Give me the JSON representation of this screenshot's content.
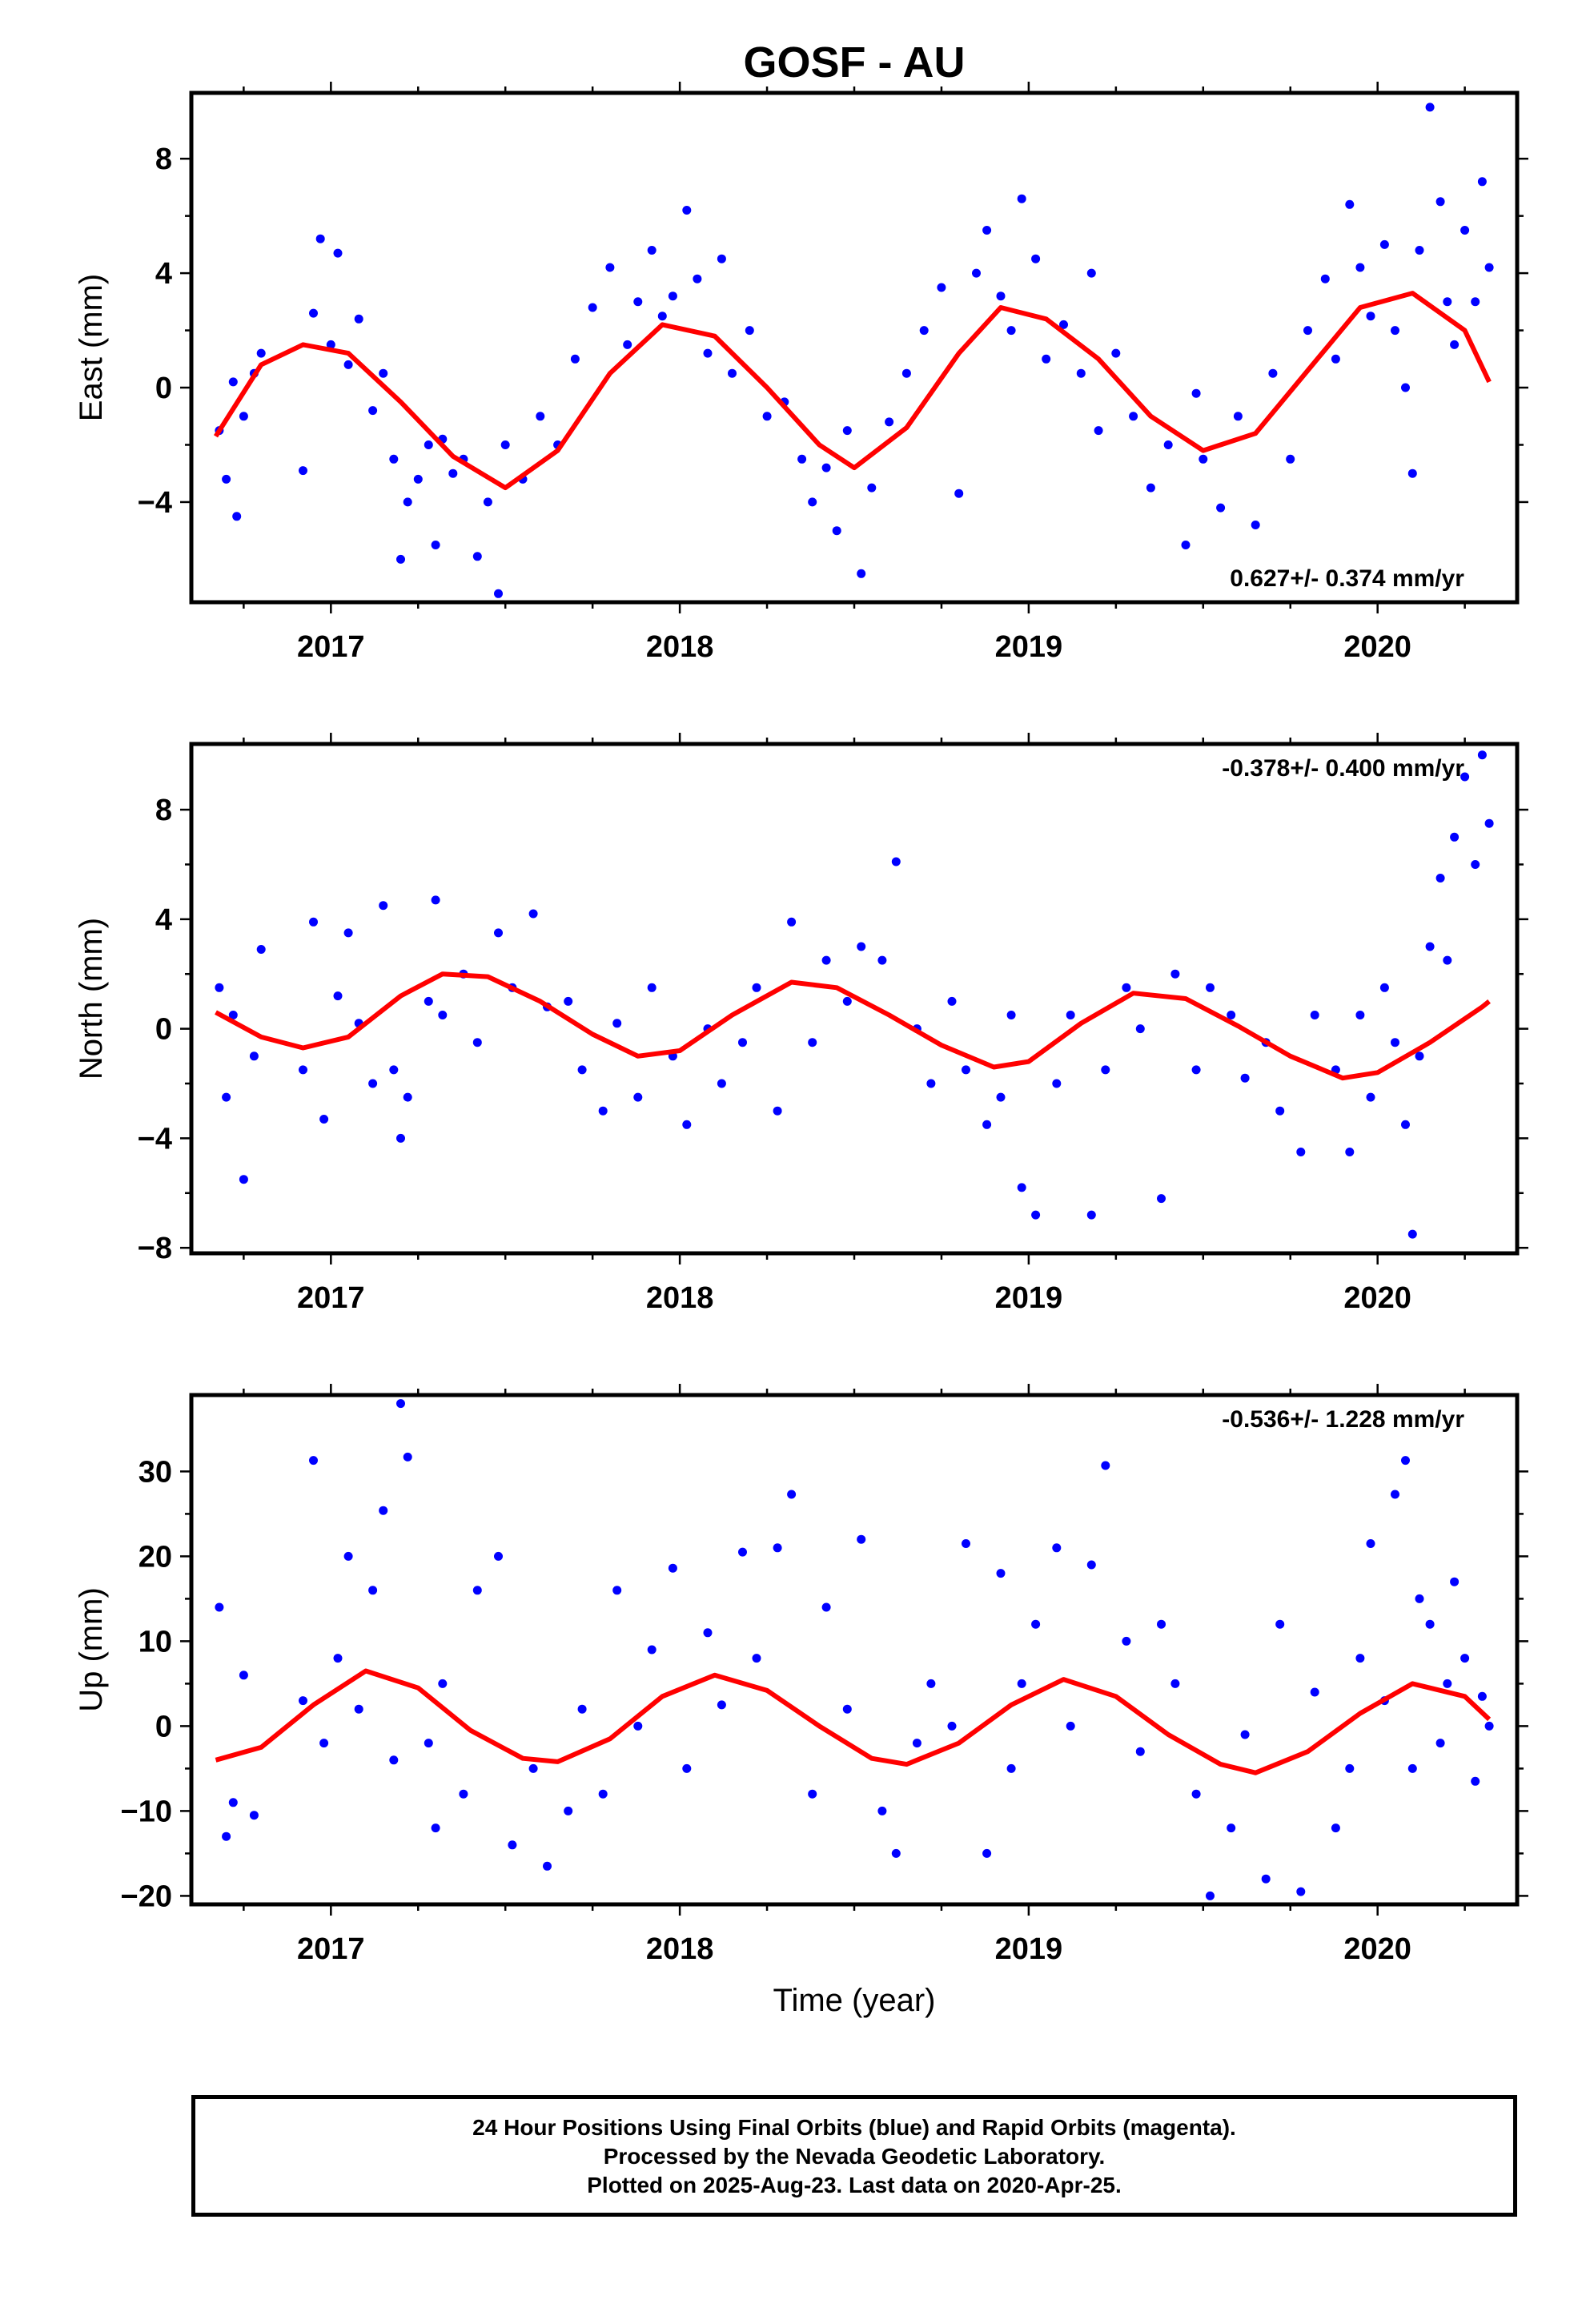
{
  "title": "GOSF - AU",
  "colors": {
    "points": "#0000ff",
    "fit": "#ff0000",
    "frame": "#000000"
  },
  "chart_data": [
    {
      "type": "scatter",
      "ylabel": "East (mm)",
      "xlabel": "",
      "xlim": [
        2016.6,
        2020.4
      ],
      "ylim": [
        -7.5,
        10.3
      ],
      "xticks": [
        2017,
        2018,
        2019,
        2020
      ],
      "yticks": [
        -4,
        0,
        4,
        8
      ],
      "annotation": "0.627+/- 0.374 mm/yr",
      "annotation_placement": "bottom-right",
      "fit": {
        "x": [
          2016.67,
          2016.8,
          2016.92,
          2017.05,
          2017.2,
          2017.35,
          2017.5,
          2017.65,
          2017.8,
          2017.95,
          2018.1,
          2018.25,
          2018.4,
          2018.5,
          2018.65,
          2018.8,
          2018.92,
          2019.05,
          2019.2,
          2019.35,
          2019.5,
          2019.65,
          2019.8,
          2019.95,
          2020.1,
          2020.25,
          2020.32
        ],
        "y": [
          -1.7,
          0.8,
          1.5,
          1.2,
          -0.5,
          -2.4,
          -3.5,
          -2.2,
          0.5,
          2.2,
          1.8,
          0.0,
          -2.0,
          -2.8,
          -1.4,
          1.2,
          2.8,
          2.4,
          1.0,
          -1.0,
          -2.2,
          -1.6,
          0.6,
          2.8,
          3.3,
          2.0,
          0.2
        ]
      },
      "points": {
        "x": [
          2016.68,
          2016.7,
          2016.72,
          2016.73,
          2016.75,
          2016.78,
          2016.8,
          2016.92,
          2016.95,
          2016.97,
          2017.0,
          2017.02,
          2017.05,
          2017.08,
          2017.12,
          2017.15,
          2017.18,
          2017.2,
          2017.22,
          2017.25,
          2017.28,
          2017.3,
          2017.32,
          2017.35,
          2017.38,
          2017.42,
          2017.45,
          2017.48,
          2017.5,
          2017.55,
          2017.6,
          2017.65,
          2017.7,
          2017.75,
          2017.8,
          2017.85,
          2017.88,
          2017.92,
          2017.95,
          2017.98,
          2018.02,
          2018.05,
          2018.08,
          2018.12,
          2018.15,
          2018.2,
          2018.25,
          2018.3,
          2018.35,
          2018.38,
          2018.42,
          2018.45,
          2018.48,
          2018.52,
          2018.55,
          2018.6,
          2018.65,
          2018.7,
          2018.75,
          2018.8,
          2018.85,
          2018.88,
          2018.92,
          2018.95,
          2018.98,
          2019.02,
          2019.05,
          2019.1,
          2019.15,
          2019.18,
          2019.2,
          2019.25,
          2019.3,
          2019.35,
          2019.4,
          2019.45,
          2019.48,
          2019.5,
          2019.55,
          2019.6,
          2019.65,
          2019.7,
          2019.75,
          2019.8,
          2019.85,
          2019.88,
          2019.92,
          2019.95,
          2019.98,
          2020.02,
          2020.05,
          2020.08,
          2020.1,
          2020.12,
          2020.15,
          2020.18,
          2020.2,
          2020.22,
          2020.25,
          2020.28,
          2020.3,
          2020.32
        ],
        "y": [
          -1.5,
          -3.2,
          0.2,
          -4.5,
          -1.0,
          0.5,
          1.2,
          -2.9,
          2.6,
          5.2,
          1.5,
          4.7,
          0.8,
          2.4,
          -0.8,
          0.5,
          -2.5,
          -6.0,
          -4.0,
          -3.2,
          -2.0,
          -5.5,
          -1.8,
          -3.0,
          -2.5,
          -5.9,
          -4.0,
          -7.2,
          -2.0,
          -3.2,
          -1.0,
          -2.0,
          1.0,
          2.8,
          4.2,
          1.5,
          3.0,
          4.8,
          2.5,
          3.2,
          6.2,
          3.8,
          1.2,
          4.5,
          0.5,
          2.0,
          -1.0,
          -0.5,
          -2.5,
          -4.0,
          -2.8,
          -5.0,
          -1.5,
          -6.5,
          -3.5,
          -1.2,
          0.5,
          2.0,
          3.5,
          -3.7,
          4.0,
          5.5,
          3.2,
          2.0,
          6.6,
          4.5,
          1.0,
          2.2,
          0.5,
          4.0,
          -1.5,
          1.2,
          -1.0,
          -3.5,
          -2.0,
          -5.5,
          -0.2,
          -2.5,
          -4.2,
          -1.0,
          -4.8,
          0.5,
          -2.5,
          2.0,
          3.8,
          1.0,
          6.4,
          4.2,
          2.5,
          5.0,
          2.0,
          0.0,
          -3.0,
          4.8,
          9.8,
          6.5,
          3.0,
          1.5,
          5.5,
          3.0,
          7.2,
          4.2
        ]
      }
    },
    {
      "type": "scatter",
      "ylabel": "North (mm)",
      "xlabel": "",
      "xlim": [
        2016.6,
        2020.4
      ],
      "ylim": [
        -8.2,
        10.4
      ],
      "xticks": [
        2017,
        2018,
        2019,
        2020
      ],
      "yticks": [
        -8,
        -4,
        0,
        4,
        8
      ],
      "annotation": "-0.378+/- 0.400 mm/yr",
      "annotation_placement": "top-right",
      "fit": {
        "x": [
          2016.67,
          2016.8,
          2016.92,
          2017.05,
          2017.2,
          2017.32,
          2017.45,
          2017.6,
          2017.75,
          2017.88,
          2018.0,
          2018.15,
          2018.32,
          2018.45,
          2018.6,
          2018.75,
          2018.9,
          2019.0,
          2019.15,
          2019.3,
          2019.45,
          2019.6,
          2019.75,
          2019.9,
          2020.0,
          2020.15,
          2020.3,
          2020.32
        ],
        "y": [
          0.6,
          -0.3,
          -0.7,
          -0.3,
          1.2,
          2.0,
          1.9,
          1.0,
          -0.2,
          -1.0,
          -0.8,
          0.5,
          1.7,
          1.5,
          0.5,
          -0.6,
          -1.4,
          -1.2,
          0.2,
          1.3,
          1.1,
          0.1,
          -1.0,
          -1.8,
          -1.6,
          -0.5,
          0.8,
          1.0
        ]
      },
      "points": {
        "x": [
          2016.68,
          2016.7,
          2016.72,
          2016.75,
          2016.78,
          2016.8,
          2016.92,
          2016.95,
          2016.98,
          2017.02,
          2017.05,
          2017.08,
          2017.12,
          2017.15,
          2017.18,
          2017.2,
          2017.22,
          2017.28,
          2017.3,
          2017.32,
          2017.38,
          2017.42,
          2017.48,
          2017.52,
          2017.58,
          2017.62,
          2017.68,
          2017.72,
          2017.78,
          2017.82,
          2017.88,
          2017.92,
          2017.98,
          2018.02,
          2018.08,
          2018.12,
          2018.18,
          2018.22,
          2018.28,
          2018.32,
          2018.38,
          2018.42,
          2018.48,
          2018.52,
          2018.58,
          2018.62,
          2018.68,
          2018.72,
          2018.78,
          2018.82,
          2018.88,
          2018.92,
          2018.95,
          2018.98,
          2019.02,
          2019.08,
          2019.12,
          2019.18,
          2019.22,
          2019.28,
          2019.32,
          2019.38,
          2019.42,
          2019.48,
          2019.52,
          2019.58,
          2019.62,
          2019.68,
          2019.72,
          2019.78,
          2019.82,
          2019.88,
          2019.92,
          2019.95,
          2019.98,
          2020.02,
          2020.05,
          2020.08,
          2020.1,
          2020.12,
          2020.15,
          2020.18,
          2020.2,
          2020.22,
          2020.25,
          2020.28,
          2020.3,
          2020.32
        ],
        "y": [
          1.5,
          -2.5,
          0.5,
          -5.5,
          -1.0,
          2.9,
          -1.5,
          3.9,
          -3.3,
          1.2,
          3.5,
          0.2,
          -2.0,
          4.5,
          -1.5,
          -4.0,
          -2.5,
          1.0,
          4.7,
          0.5,
          2.0,
          -0.5,
          3.5,
          1.5,
          4.2,
          0.8,
          1.0,
          -1.5,
          -3.0,
          0.2,
          -2.5,
          1.5,
          -1.0,
          -3.5,
          0.0,
          -2.0,
          -0.5,
          1.5,
          -3.0,
          3.9,
          -0.5,
          2.5,
          1.0,
          3.0,
          2.5,
          6.1,
          0.0,
          -2.0,
          1.0,
          -1.5,
          -3.5,
          -2.5,
          0.5,
          -5.8,
          -6.8,
          -2.0,
          0.5,
          -6.8,
          -1.5,
          1.5,
          0.0,
          -6.2,
          2.0,
          -1.5,
          1.5,
          0.5,
          -1.8,
          -0.5,
          -3.0,
          -4.5,
          0.5,
          -1.5,
          -4.5,
          0.5,
          -2.5,
          1.5,
          -0.5,
          -3.5,
          -7.5,
          -1.0,
          3.0,
          5.5,
          2.5,
          7.0,
          9.2,
          6.0,
          10.0,
          7.5
        ]
      }
    },
    {
      "type": "scatter",
      "ylabel": "Up (mm)",
      "xlabel": "Time (year)",
      "xlim": [
        2016.6,
        2020.4
      ],
      "ylim": [
        -21,
        39
      ],
      "xticks": [
        2017,
        2018,
        2019,
        2020
      ],
      "yticks": [
        -20,
        -10,
        0,
        10,
        20,
        30
      ],
      "annotation": "-0.536+/- 1.228 mm/yr",
      "annotation_placement": "top-right",
      "fit": {
        "x": [
          2016.67,
          2016.8,
          2016.95,
          2017.1,
          2017.25,
          2017.4,
          2017.55,
          2017.65,
          2017.8,
          2017.95,
          2018.1,
          2018.25,
          2018.4,
          2018.55,
          2018.65,
          2018.8,
          2018.95,
          2019.1,
          2019.25,
          2019.4,
          2019.55,
          2019.65,
          2019.8,
          2019.95,
          2020.1,
          2020.25,
          2020.32
        ],
        "y": [
          -4.0,
          -2.5,
          2.5,
          6.5,
          4.5,
          -0.5,
          -3.8,
          -4.2,
          -1.5,
          3.5,
          6.0,
          4.2,
          0.0,
          -3.8,
          -4.5,
          -2.0,
          2.5,
          5.5,
          3.5,
          -1.0,
          -4.5,
          -5.5,
          -3.0,
          1.5,
          5.0,
          3.5,
          0.8
        ]
      },
      "points": {
        "x": [
          2016.68,
          2016.7,
          2016.72,
          2016.75,
          2016.78,
          2016.92,
          2016.95,
          2016.98,
          2017.02,
          2017.05,
          2017.08,
          2017.12,
          2017.15,
          2017.18,
          2017.2,
          2017.22,
          2017.28,
          2017.3,
          2017.32,
          2017.38,
          2017.42,
          2017.48,
          2017.52,
          2017.58,
          2017.62,
          2017.68,
          2017.72,
          2017.78,
          2017.82,
          2017.88,
          2017.92,
          2017.98,
          2018.02,
          2018.08,
          2018.12,
          2018.18,
          2018.22,
          2018.28,
          2018.32,
          2018.38,
          2018.42,
          2018.48,
          2018.52,
          2018.58,
          2018.62,
          2018.68,
          2018.72,
          2018.78,
          2018.82,
          2018.88,
          2018.92,
          2018.95,
          2018.98,
          2019.02,
          2019.08,
          2019.12,
          2019.18,
          2019.22,
          2019.28,
          2019.32,
          2019.38,
          2019.42,
          2019.48,
          2019.52,
          2019.58,
          2019.62,
          2019.68,
          2019.72,
          2019.78,
          2019.82,
          2019.88,
          2019.92,
          2019.95,
          2019.98,
          2020.02,
          2020.05,
          2020.08,
          2020.1,
          2020.12,
          2020.15,
          2020.18,
          2020.2,
          2020.22,
          2020.25,
          2020.28,
          2020.3,
          2020.32
        ],
        "y": [
          14.0,
          -13.0,
          -9.0,
          6.0,
          -10.5,
          3.0,
          31.3,
          -2.0,
          8.0,
          20.0,
          2.0,
          16.0,
          25.4,
          -4.0,
          38.0,
          31.7,
          -2.0,
          -12.0,
          5.0,
          -8.0,
          16.0,
          20.0,
          -14.0,
          -5.0,
          -16.5,
          -10.0,
          2.0,
          -8.0,
          16.0,
          0.0,
          9.0,
          18.6,
          -5.0,
          11.0,
          2.5,
          20.5,
          8.0,
          21.0,
          27.3,
          -8.0,
          14.0,
          2.0,
          22.0,
          -10.0,
          -15.0,
          -2.0,
          5.0,
          0.0,
          21.5,
          -15.0,
          18.0,
          -5.0,
          5.0,
          12.0,
          21.0,
          0.0,
          19.0,
          30.7,
          10.0,
          -3.0,
          12.0,
          5.0,
          -8.0,
          -20.0,
          -12.0,
          -1.0,
          -18.0,
          12.0,
          -19.5,
          4.0,
          -12.0,
          -5.0,
          8.0,
          21.5,
          3.0,
          27.3,
          31.3,
          -5.0,
          15.0,
          12.0,
          -2.0,
          5.0,
          17.0,
          8.0,
          -6.5,
          3.5,
          0.0
        ]
      }
    }
  ],
  "footer": {
    "line1": "24 Hour Positions Using Final Orbits (blue) and Rapid Orbits (magenta).",
    "line2": "Processed by the Nevada Geodetic Laboratory.",
    "line3": "Plotted on 2025-Aug-23. Last data on 2020-Apr-25."
  }
}
